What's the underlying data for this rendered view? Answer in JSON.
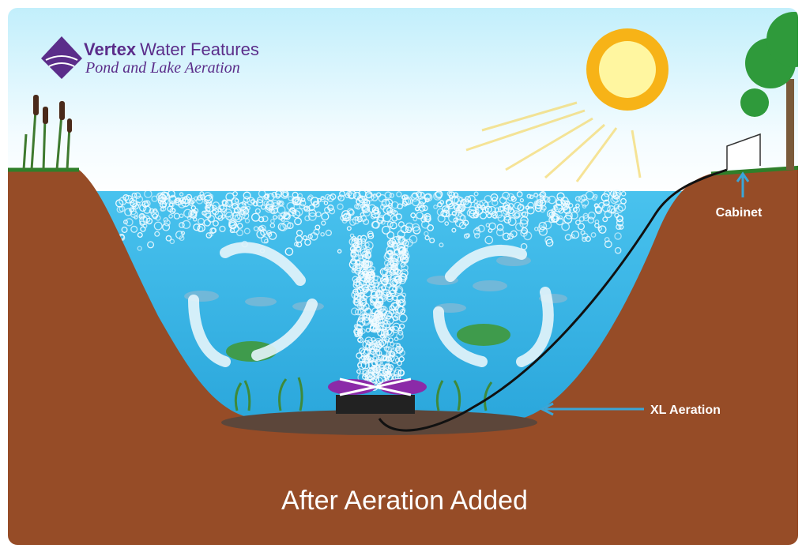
{
  "brand": {
    "name": "Vertex",
    "suffix": "Water Features",
    "tagline": "Pond and Lake Aeration"
  },
  "labels": {
    "cabinet": "Cabinet",
    "aerator": "XL Aeration"
  },
  "caption": "After Aeration Added"
}
